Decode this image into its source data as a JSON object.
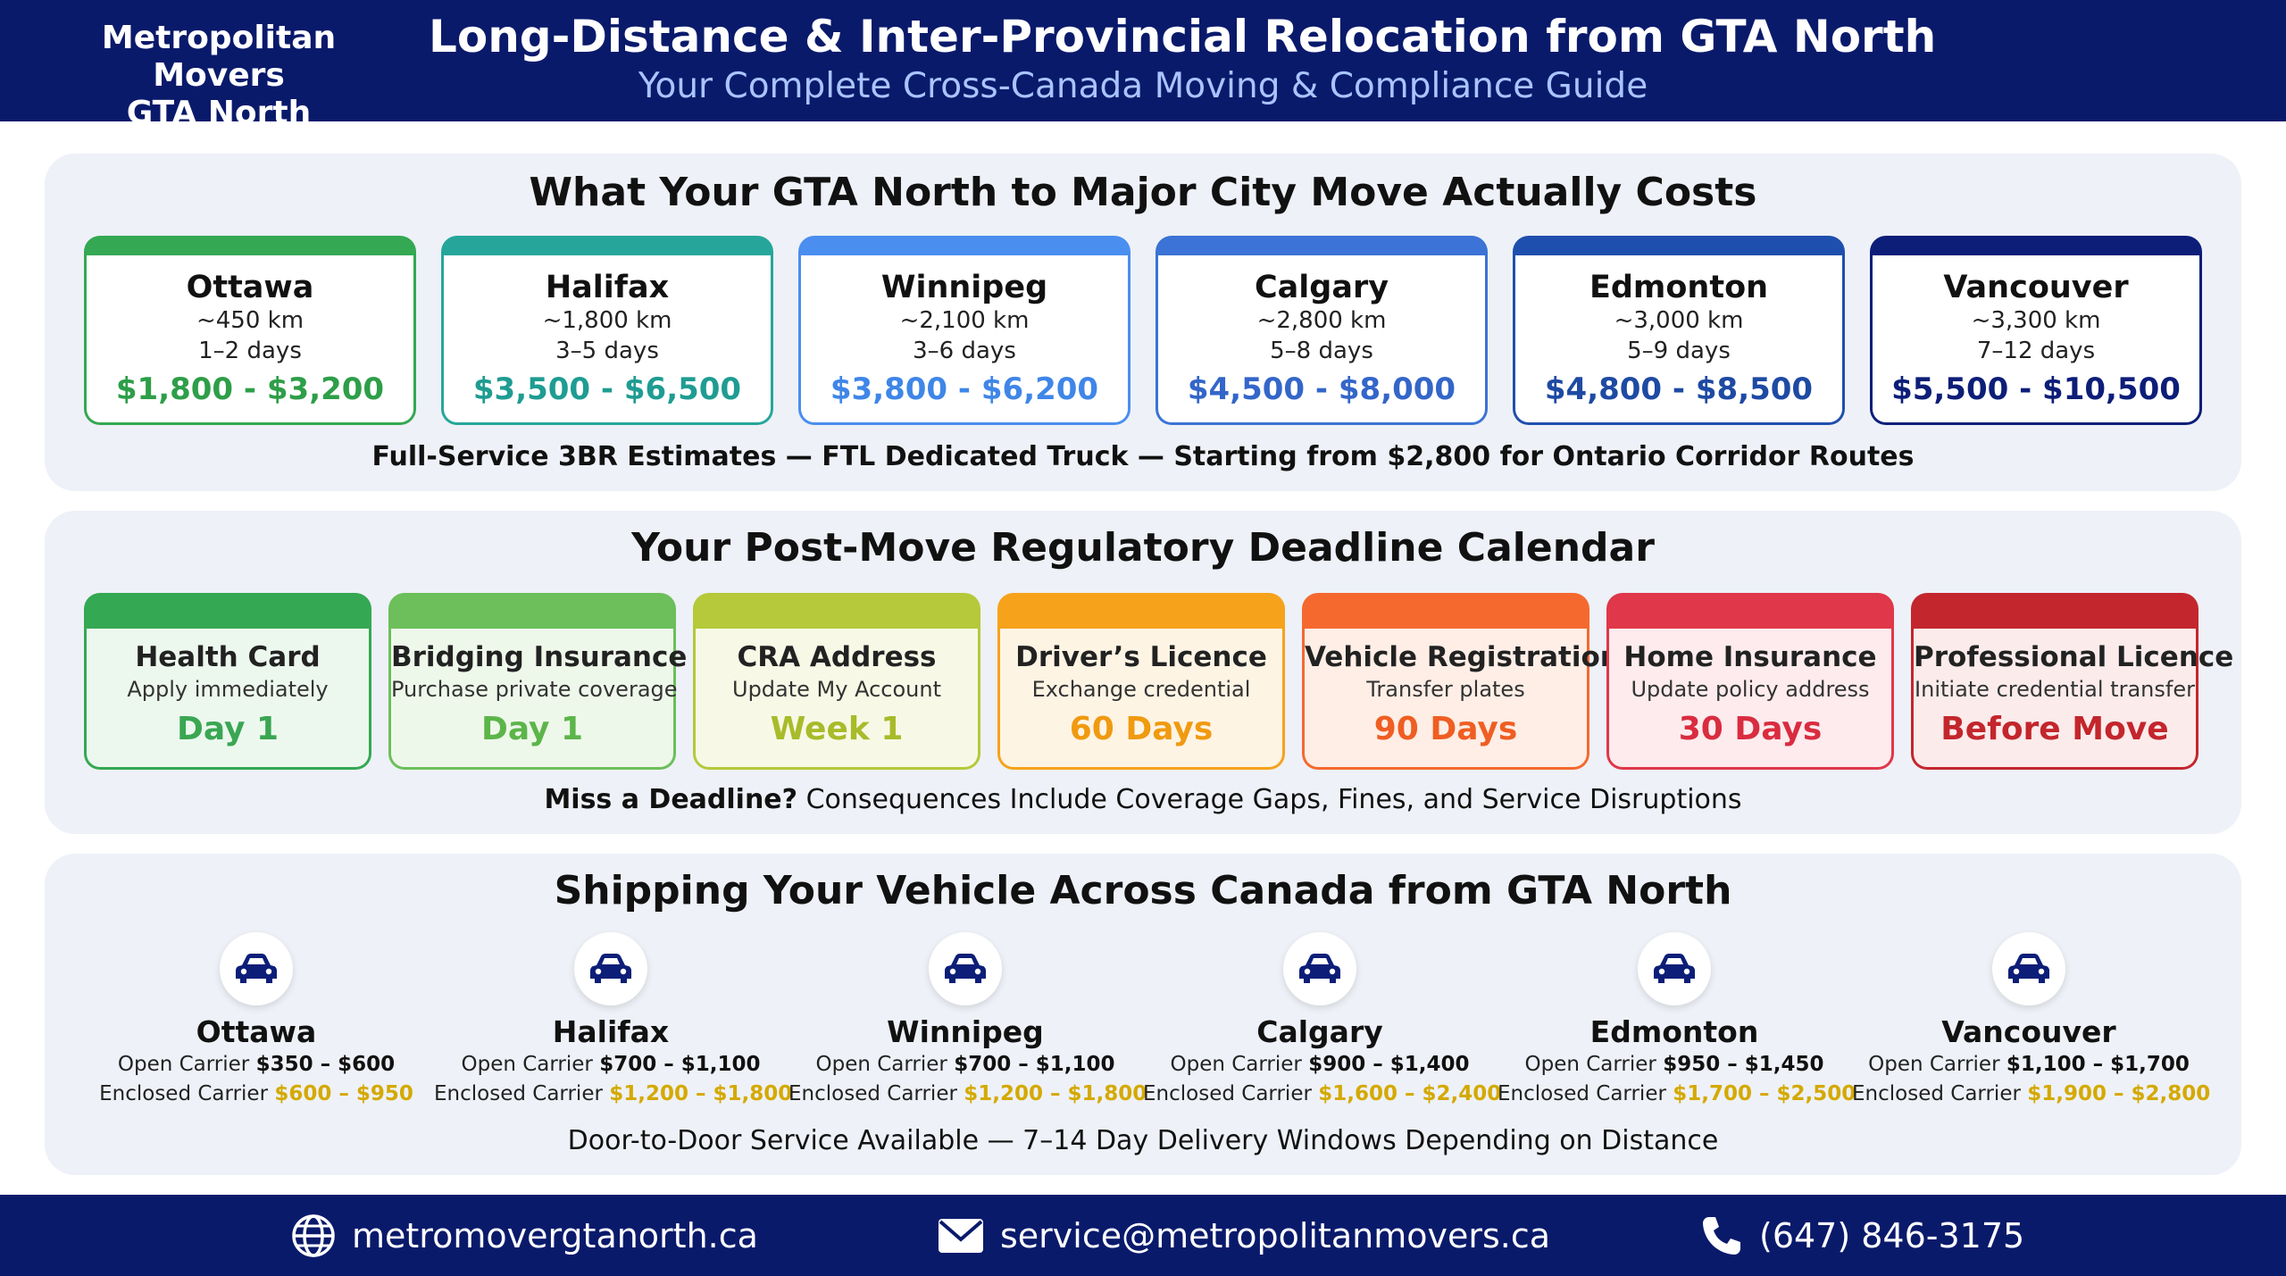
{
  "header": {
    "brand_line1": "Metropolitan Movers",
    "brand_line2": "GTA North",
    "title": "Long-Distance & Inter-Provincial Relocation from GTA North",
    "subtitle": "Your Complete Cross-Canada Moving & Compliance Guide"
  },
  "costs": {
    "title": "What Your GTA North to Major City Move Actually Costs",
    "cards": [
      {
        "city": "Ottawa",
        "distance": "~450 km",
        "days": "1–2 days",
        "price": "$1,800 - $3,200",
        "color": "#34a853",
        "price_color": "#2e9e48"
      },
      {
        "city": "Halifax",
        "distance": "~1,800 km",
        "days": "3–5 days",
        "price": "$3,500 - $6,500",
        "color": "#26a69a",
        "price_color": "#1f9c92"
      },
      {
        "city": "Winnipeg",
        "distance": "~2,100 km",
        "days": "3–6 days",
        "price": "$3,800 - $6,200",
        "color": "#4a8ef0",
        "price_color": "#3f86e8"
      },
      {
        "city": "Calgary",
        "distance": "~2,800 km",
        "days": "5–8 days",
        "price": "$4,500 - $8,000",
        "color": "#3b73d6",
        "price_color": "#3466c9"
      },
      {
        "city": "Edmonton",
        "distance": "~3,000 km",
        "days": "5–9 days",
        "price": "$4,800 - $8,500",
        "color": "#1f4fae",
        "price_color": "#1e4aa3"
      },
      {
        "city": "Vancouver",
        "distance": "~3,300 km",
        "days": "7–12 days",
        "price": "$5,500 - $10,500",
        "color": "#0c1e78",
        "price_color": "#0c1e78"
      }
    ],
    "note": "Full-Service 3BR Estimates — FTL Dedicated Truck — Starting from $2,800 for Ontario Corridor Routes"
  },
  "deadlines": {
    "title": "Your Post-Move Regulatory Deadline Calendar",
    "cards": [
      {
        "title": "Health Card",
        "desc": "Apply immediately",
        "when": "Day 1",
        "color": "#34a853",
        "bg": "#ecf8ee",
        "when_color": "#3aa652"
      },
      {
        "title": "Bridging Insurance",
        "desc": "Purchase private coverage",
        "when": "Day 1",
        "color": "#6cbf5a",
        "bg": "#eef8ea",
        "when_color": "#5cb54a"
      },
      {
        "title": "CRA Address",
        "desc": "Update My Account",
        "when": "Week 1",
        "color": "#b5c93a",
        "bg": "#f7f9e6",
        "when_color": "#a8bb2a"
      },
      {
        "title": "Driver’s Licence",
        "desc": "Exchange credential",
        "when": "60 Days",
        "color": "#f7a21b",
        "bg": "#fef4e4",
        "when_color": "#f09a10"
      },
      {
        "title": "Vehicle Registration",
        "desc": "Transfer plates",
        "when": "90 Days",
        "color": "#f5692e",
        "bg": "#feeee6",
        "when_color": "#ef5e22"
      },
      {
        "title": "Home Insurance",
        "desc": "Update policy address",
        "when": "30 Days",
        "color": "#e0374a",
        "bg": "#fdebed",
        "when_color": "#d92c40"
      },
      {
        "title": "Professional Licence",
        "desc": "Initiate credential transfer",
        "when": "Before Move",
        "color": "#c3272d",
        "bg": "#fcebeb",
        "when_color": "#c3262c"
      }
    ],
    "note_bold": "Miss a Deadline?",
    "note_rest": " Consequences Include Coverage Gaps, Fines, and Service Disruptions"
  },
  "vehicles": {
    "title": "Shipping Your Vehicle Across Canada from GTA North",
    "open_label": "Open Carrier ",
    "enclosed_label": "Enclosed Carrier ",
    "items": [
      {
        "city": "Ottawa",
        "open": "$350 – $600",
        "enclosed": "$600 – $950"
      },
      {
        "city": "Halifax",
        "open": "$700 – $1,100",
        "enclosed": "$1,200 – $1,800"
      },
      {
        "city": "Winnipeg",
        "open": "$700 – $1,100",
        "enclosed": "$1,200 – $1,800"
      },
      {
        "city": "Calgary",
        "open": "$900 – $1,400",
        "enclosed": "$1,600 – $2,400"
      },
      {
        "city": "Edmonton",
        "open": "$950 – $1,450",
        "enclosed": "$1,700 – $2,500"
      },
      {
        "city": "Vancouver",
        "open": "$1,100 – $1,700",
        "enclosed": "$1,900 – $2,800"
      }
    ],
    "note": "Door-to-Door Service Available — 7–14 Day Delivery Windows Depending on Distance",
    "icon": "car-icon"
  },
  "footer": {
    "website": "metromovergtanorth.ca",
    "email": "service@metropolitanmovers.ca",
    "phone": "(647) 846-3175"
  }
}
